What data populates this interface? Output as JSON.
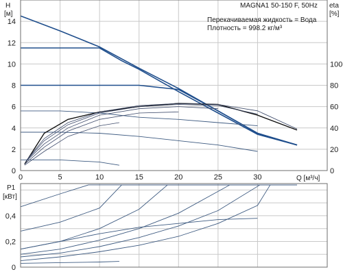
{
  "chart_data": [
    {
      "type": "line",
      "title": "MAGNA1 50-150 F, 50Hz",
      "annotations": [
        "Перекачиваемая жидкость = Вода",
        "Плотность = 998.2 кг/м³"
      ],
      "xlabel": "Q [м³/ч]",
      "ylabel_line1": "H",
      "ylabel_line2": "[м]",
      "y2label_line1": "eta",
      "y2label_line2": "[%]",
      "xlim": [
        0,
        35
      ],
      "ylim": [
        0,
        16
      ],
      "y2lim": [
        0,
        160
      ],
      "x_ticks": [
        "0",
        "5",
        "10",
        "15",
        "20",
        "25",
        "30"
      ],
      "y_ticks": [
        "0",
        "2",
        "4",
        "6",
        "8",
        "10",
        "12",
        "14"
      ],
      "y2_ticks": [
        "0",
        "20",
        "40",
        "60",
        "80",
        "100"
      ],
      "grid": true,
      "series": [
        {
          "values": [
            [
              0,
              14.5
            ],
            [
              5,
              13.1
            ],
            [
              10,
              11.6
            ],
            [
              15,
              9.6
            ],
            [
              20,
              7.7
            ],
            [
              25,
              5.6
            ],
            [
              30,
              3.5
            ],
            [
              35,
              2.4
            ]
          ]
        },
        {
          "values": [
            [
              0,
              11.5
            ],
            [
              5,
              11.5
            ],
            [
              10,
              11.5
            ],
            [
              12.8,
              10.3
            ],
            [
              15,
              9.5
            ],
            [
              20,
              7.4
            ],
            [
              25,
              5.4
            ],
            [
              30,
              3.4
            ],
            [
              35,
              2.4
            ]
          ]
        },
        {
          "values": [
            [
              0,
              8.0
            ],
            [
              5,
              8.0
            ],
            [
              10,
              8.0
            ],
            [
              15,
              8.0
            ],
            [
              20,
              7.6
            ],
            [
              25,
              5.6
            ],
            [
              30,
              3.5
            ],
            [
              35,
              2.4
            ]
          ]
        },
        {
          "values": [
            [
              0,
              5.6
            ],
            [
              5,
              5.6
            ],
            [
              10,
              5.4
            ],
            [
              15,
              5.0
            ],
            [
              20,
              4.8
            ],
            [
              25,
              4.5
            ],
            [
              30,
              4.2
            ]
          ]
        },
        {
          "values": [
            [
              0,
              3.6
            ],
            [
              5,
              3.6
            ],
            [
              10,
              3.5
            ],
            [
              15,
              3.2
            ],
            [
              20,
              2.8
            ],
            [
              25,
              2.4
            ],
            [
              30,
              1.8
            ]
          ]
        },
        {
          "values": [
            [
              0,
              1.0
            ],
            [
              5,
              1.0
            ],
            [
              10,
              0.8
            ],
            [
              12.5,
              0.5
            ]
          ]
        },
        {
          "values": [
            [
              0.5,
              0.6
            ],
            [
              3,
              3.5
            ],
            [
              6,
              4.8
            ],
            [
              10,
              5.5
            ],
            [
              15,
              6.0
            ],
            [
              20,
              6.3
            ],
            [
              25,
              6.2
            ],
            [
              30,
              5.2
            ],
            [
              35,
              3.8
            ]
          ]
        }
      ],
      "efficiency_eta_percent": [
        {
          "values": [
            [
              0.8,
              10
            ],
            [
              3,
              30
            ],
            [
              6,
              45
            ],
            [
              10,
              55
            ],
            [
              15,
              61
            ],
            [
              20,
              63
            ],
            [
              25,
              62
            ],
            [
              30,
              56
            ],
            [
              35,
              39
            ]
          ]
        },
        {
          "values": [
            [
              0.7,
              9
            ],
            [
              3,
              28
            ],
            [
              6,
              43
            ],
            [
              10,
              54
            ],
            [
              15,
              60
            ],
            [
              20,
              62
            ],
            [
              25,
              61
            ],
            [
              30,
              53
            ]
          ]
        },
        {
          "values": [
            [
              0.6,
              8
            ],
            [
              3,
              25
            ],
            [
              6,
              40
            ],
            [
              10,
              52
            ],
            [
              15,
              58
            ],
            [
              20,
              60
            ],
            [
              25,
              58
            ]
          ]
        },
        {
          "values": [
            [
              0.5,
              6
            ],
            [
              3,
              22
            ],
            [
              6,
              37
            ],
            [
              10,
              48
            ],
            [
              15,
              54
            ],
            [
              20,
              55
            ]
          ]
        },
        {
          "values": [
            [
              0.5,
              5
            ],
            [
              3,
              18
            ],
            [
              6,
              32
            ],
            [
              10,
              42
            ],
            [
              12.5,
              45
            ]
          ]
        }
      ]
    },
    {
      "type": "line",
      "ylabel_line1": "P1",
      "ylabel_line2": "[кВт]",
      "xlim": [
        0,
        35
      ],
      "ylim": [
        0,
        0.65
      ],
      "y_ticks": [
        "0",
        "0,2",
        "0,4"
      ],
      "grid": true,
      "series": [
        {
          "values": [
            [
              0,
              0.47
            ],
            [
              5,
              0.57
            ],
            [
              8.6,
              0.64
            ],
            [
              35,
              0.64
            ]
          ]
        },
        {
          "values": [
            [
              0,
              0.28
            ],
            [
              5,
              0.35
            ],
            [
              10,
              0.46
            ],
            [
              12.8,
              0.64
            ],
            [
              35,
              0.64
            ]
          ]
        },
        {
          "values": [
            [
              0,
              0.14
            ],
            [
              5,
              0.2
            ],
            [
              10,
              0.3
            ],
            [
              15,
              0.45
            ],
            [
              18.6,
              0.64
            ],
            [
              35,
              0.64
            ]
          ]
        },
        {
          "values": [
            [
              0,
              0.1
            ],
            [
              5,
              0.14
            ],
            [
              10,
              0.21
            ],
            [
              15,
              0.3
            ],
            [
              20,
              0.42
            ],
            [
              26.5,
              0.64
            ],
            [
              35,
              0.64
            ]
          ]
        },
        {
          "values": [
            [
              0,
              0.08
            ],
            [
              5,
              0.11
            ],
            [
              10,
              0.16
            ],
            [
              15,
              0.23
            ],
            [
              20,
              0.32
            ],
            [
              25,
              0.44
            ],
            [
              30.3,
              0.64
            ],
            [
              35,
              0.64
            ]
          ]
        },
        {
          "values": [
            [
              0,
              0.05
            ],
            [
              5,
              0.08
            ],
            [
              10,
              0.12
            ],
            [
              15,
              0.17
            ],
            [
              20,
              0.24
            ],
            [
              25,
              0.34
            ],
            [
              30,
              0.48
            ],
            [
              31.6,
              0.64
            ],
            [
              35,
              0.64
            ]
          ]
        },
        {
          "values": [
            [
              0,
              0.14
            ],
            [
              5,
              0.2
            ],
            [
              10,
              0.26
            ],
            [
              15,
              0.31
            ],
            [
              20,
              0.34
            ],
            [
              25,
              0.37
            ],
            [
              30,
              0.38
            ]
          ]
        },
        {
          "values": [
            [
              0,
              0.03
            ],
            [
              5,
              0.035
            ],
            [
              10,
              0.04
            ],
            [
              12.5,
              0.045
            ]
          ]
        }
      ]
    }
  ]
}
